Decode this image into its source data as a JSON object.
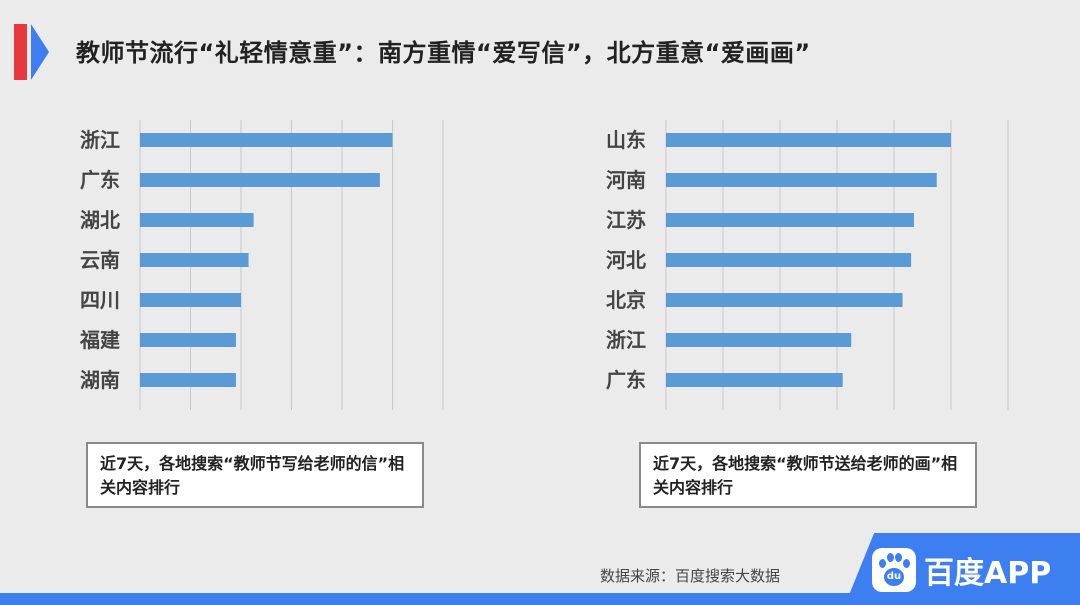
{
  "header": {
    "title": "教师节流行“礼轻情意重”：南方重情“爱写信”，北方重意“爱画画”"
  },
  "chart_data": [
    {
      "type": "bar",
      "orientation": "horizontal",
      "categories": [
        "浙江",
        "广东",
        "湖北",
        "云南",
        "四川",
        "福建",
        "湖南"
      ],
      "values": [
        100,
        95,
        45,
        43,
        40,
        38,
        38
      ],
      "xlim": [
        0,
        120
      ],
      "grid": true,
      "color": "#5b9bd5",
      "caption": "近7天，各地搜索“教师节写给老师的信”相关内容排行"
    },
    {
      "type": "bar",
      "orientation": "horizontal",
      "categories": [
        "山东",
        "河南",
        "江苏",
        "河北",
        "北京",
        "浙江",
        "广东"
      ],
      "values": [
        100,
        95,
        87,
        86,
        83,
        65,
        62
      ],
      "xlim": [
        0,
        120
      ],
      "grid": true,
      "color": "#5b9bd5",
      "caption": "近7天，各地搜索“教师节送给老师的画”相关内容排行"
    }
  ],
  "footer": {
    "source": "数据来源：百度搜索大数据",
    "brand": "百度APP",
    "brand_icon": "baidu-paw-icon",
    "brand_icon_text": "du"
  },
  "colors": {
    "accent_red": "#e8383d",
    "accent_blue": "#3d7ff0",
    "bar": "#5b9bd5"
  }
}
